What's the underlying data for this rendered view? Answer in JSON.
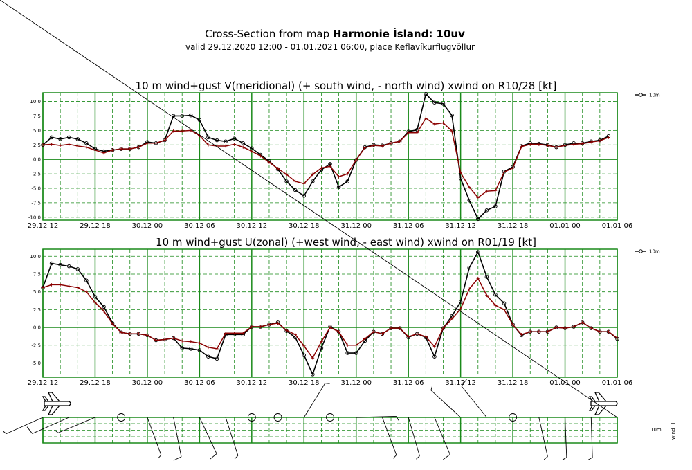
{
  "title": {
    "prefix": "Cross-Section from map",
    "bold": "Harmonie Ísland: 10uv",
    "subtitle": "valid 29.12.2020 12:00 - 01.01.2021 06:00, place Keflavíkurflugvöllur"
  },
  "colors": {
    "grid": "#1a8a1a",
    "wind": "#000000",
    "gust": "#8b0000"
  },
  "chart_data": [
    {
      "type": "line",
      "title": "10 m wind+gust V(meridional) (+ south wind, - north wind) xwind on R10/28 [kt]",
      "x_hours": [
        0,
        1,
        2,
        3,
        4,
        5,
        6,
        7,
        8,
        9,
        10,
        11,
        12,
        13,
        14,
        15,
        16,
        17,
        18,
        19,
        20,
        21,
        22,
        23,
        24,
        25,
        26,
        27,
        28,
        29,
        30,
        31,
        32,
        33,
        34,
        35,
        36,
        37,
        38,
        39,
        40,
        41,
        42,
        43,
        44,
        45,
        46,
        47,
        48,
        49,
        50,
        51,
        52,
        53,
        54,
        55,
        56,
        57,
        58,
        59,
        60,
        61,
        62,
        63,
        64,
        65,
        66
      ],
      "xtick_labels": [
        "29.12 12",
        "29.12 18",
        "30.12 00",
        "30.12 06",
        "30.12 12",
        "30.12 18",
        "31.12 00",
        "31.12 06",
        "31.12 12",
        "31.12 18",
        "01.01 00",
        "01.01 06"
      ],
      "ytick_labels": [
        "10.0",
        "7.5",
        "5.0",
        "2.5",
        "0.0",
        "-2.5",
        "-5.0",
        "-7.5",
        "-10.0"
      ],
      "ylim": [
        -10.5,
        11.5
      ],
      "legend": [
        "10m"
      ],
      "series": [
        {
          "name": "10m",
          "values": [
            2.5,
            3.8,
            3.5,
            3.8,
            3.5,
            2.8,
            1.8,
            1.4,
            1.6,
            1.8,
            1.8,
            2.1,
            3.0,
            2.8,
            3.3,
            7.5,
            7.5,
            7.6,
            6.8,
            3.8,
            3.3,
            3.1,
            3.6,
            2.8,
            1.9,
            0.8,
            -0.3,
            -1.7,
            -3.8,
            -5.3,
            -6.3,
            -3.8,
            -1.8,
            -0.8,
            -4.8,
            -3.8,
            -0.1,
            2.1,
            2.5,
            2.4,
            2.8,
            3.1,
            4.8,
            5.1,
            11.3,
            9.8,
            9.6,
            7.6,
            -3.3,
            -7.1,
            -10.3,
            -8.8,
            -8.1,
            -2.1,
            -1.3,
            2.3,
            2.8,
            2.7,
            2.5,
            2.1,
            2.5,
            2.8,
            2.8,
            3.1,
            3.3,
            4.0
          ]
        },
        {
          "name": "gust",
          "values": [
            2.5,
            2.6,
            2.4,
            2.6,
            2.3,
            2.1,
            1.6,
            1.1,
            1.6,
            1.8,
            1.8,
            2.1,
            2.8,
            2.8,
            3.3,
            4.9,
            4.9,
            5.0,
            4.1,
            2.5,
            2.3,
            2.3,
            2.6,
            2.1,
            1.4,
            0.6,
            -0.5,
            -1.6,
            -2.6,
            -3.8,
            -4.2,
            -2.6,
            -1.5,
            -1.2,
            -3.0,
            -2.5,
            -0.1,
            2.0,
            2.4,
            2.3,
            2.8,
            3.1,
            4.6,
            4.6,
            7.1,
            6.1,
            6.3,
            4.9,
            -2.3,
            -4.8,
            -6.6,
            -5.5,
            -5.4,
            -2.2,
            -1.5,
            2.2,
            2.6,
            2.6,
            2.4,
            2.1,
            2.4,
            2.6,
            2.7,
            3.0,
            3.2,
            3.8
          ]
        }
      ]
    },
    {
      "type": "line",
      "title": "10 m wind+gust U(zonal) (+west wind, - east wind) xwind on R01/19 [kt]",
      "x_hours": [
        0,
        1,
        2,
        3,
        4,
        5,
        6,
        7,
        8,
        9,
        10,
        11,
        12,
        13,
        14,
        15,
        16,
        17,
        18,
        19,
        20,
        21,
        22,
        23,
        24,
        25,
        26,
        27,
        28,
        29,
        30,
        31,
        32,
        33,
        34,
        35,
        36,
        37,
        38,
        39,
        40,
        41,
        42,
        43,
        44,
        45,
        46,
        47,
        48,
        49,
        50,
        51,
        52,
        53,
        54,
        55,
        56,
        57,
        58,
        59,
        60,
        61,
        62,
        63,
        64,
        65,
        66
      ],
      "xtick_labels": [
        "29.12 12",
        "29.12 18",
        "30.12 00",
        "30.12 06",
        "30.12 12",
        "30.12 18",
        "31.12 00",
        "31.12 06",
        "31.12 12",
        "31.12 18",
        "01.01 00",
        "01.01 06"
      ],
      "ytick_labels": [
        "10.0",
        "7.5",
        "5.0",
        "2.5",
        "0.0",
        "-2.5",
        "-5.0"
      ],
      "ylim": [
        -7.0,
        11.0
      ],
      "legend": [
        "10m"
      ],
      "series": [
        {
          "name": "10m",
          "values": [
            5.6,
            9.0,
            8.8,
            8.6,
            8.2,
            6.6,
            4.3,
            2.9,
            0.6,
            -0.7,
            -0.9,
            -0.9,
            -1.1,
            -1.8,
            -1.7,
            -1.5,
            -2.9,
            -3.0,
            -3.2,
            -4.1,
            -4.4,
            -1.0,
            -1.0,
            -1.0,
            0.1,
            0.1,
            0.4,
            0.7,
            -0.5,
            -1.4,
            -3.9,
            -6.6,
            -2.9,
            0.1,
            -0.6,
            -3.6,
            -3.6,
            -1.9,
            -0.6,
            -0.9,
            -0.1,
            -0.1,
            -1.4,
            -0.9,
            -1.4,
            -4.1,
            -0.1,
            1.6,
            3.6,
            8.4,
            10.6,
            7.1,
            4.6,
            3.4,
            0.4,
            -1.1,
            -0.6,
            -0.6,
            -0.6,
            0.0,
            -0.1,
            0.1,
            0.7,
            -0.1,
            -0.6,
            -0.6,
            -1.6
          ]
        },
        {
          "name": "gust",
          "values": [
            5.6,
            6.0,
            6.0,
            5.8,
            5.6,
            5.0,
            3.5,
            2.3,
            0.5,
            -0.7,
            -0.9,
            -0.9,
            -1.1,
            -1.8,
            -1.7,
            -1.5,
            -1.9,
            -2.0,
            -2.2,
            -2.8,
            -3.0,
            -0.8,
            -0.8,
            -0.8,
            0.1,
            0.1,
            0.4,
            0.6,
            -0.4,
            -1.0,
            -2.6,
            -4.3,
            -2.0,
            0.0,
            -0.6,
            -2.5,
            -2.5,
            -1.6,
            -0.6,
            -0.9,
            -0.1,
            -0.1,
            -1.3,
            -0.9,
            -1.3,
            -2.7,
            -0.1,
            1.2,
            2.6,
            5.4,
            6.9,
            4.5,
            3.1,
            2.5,
            0.4,
            -1.0,
            -0.6,
            -0.6,
            -0.6,
            0.0,
            -0.1,
            0.1,
            0.7,
            -0.1,
            -0.6,
            -0.6,
            -1.5
          ]
        }
      ]
    }
  ],
  "wind_panel": {
    "legend_level": "10m",
    "legend_label": "wind []"
  }
}
